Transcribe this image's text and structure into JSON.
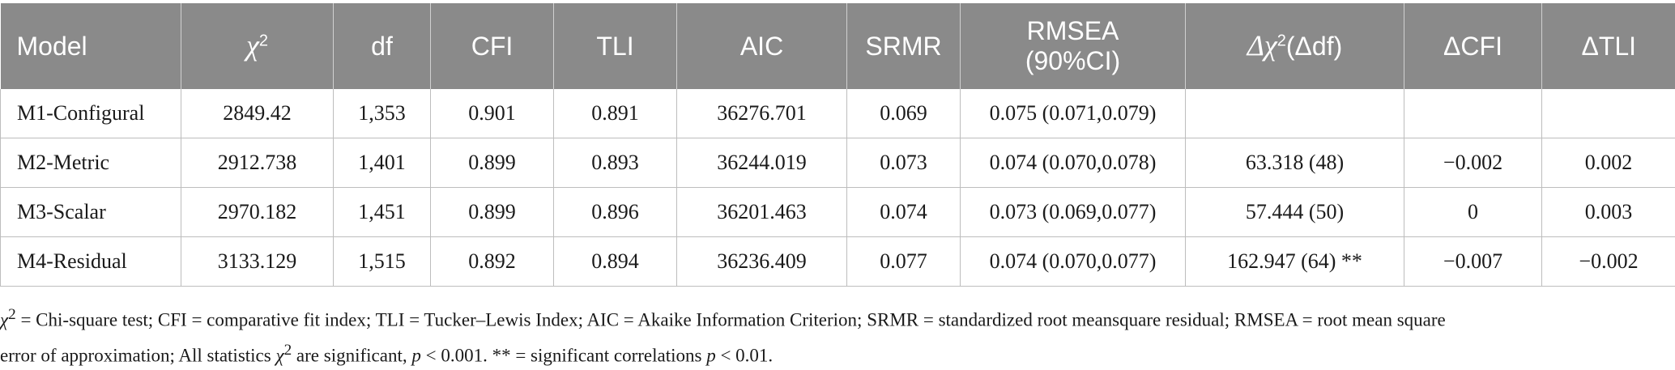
{
  "table": {
    "headers": [
      {
        "key": "model",
        "label": "Model"
      },
      {
        "key": "chi2",
        "label": "χ",
        "sup": "2"
      },
      {
        "key": "df",
        "label": "df"
      },
      {
        "key": "cfi",
        "label": "CFI"
      },
      {
        "key": "tli",
        "label": "TLI"
      },
      {
        "key": "aic",
        "label": "AIC"
      },
      {
        "key": "srmr",
        "label": "SRMR"
      },
      {
        "key": "rmsea",
        "label": "RMSEA",
        "label2": "(90%CI)"
      },
      {
        "key": "dchi",
        "label": "Δχ",
        "sup": "2",
        "suffix": "(Δdf)"
      },
      {
        "key": "dcfi",
        "label": "ΔCFI"
      },
      {
        "key": "dtli",
        "label": "ΔTLI"
      }
    ],
    "rows": [
      [
        "M1-Configural",
        "2849.42",
        "1,353",
        "0.901",
        "0.891",
        "36276.701",
        "0.069",
        "0.075 (0.071,0.079)",
        "",
        "",
        ""
      ],
      [
        "M2-Metric",
        "2912.738",
        "1,401",
        "0.899",
        "0.893",
        "36244.019",
        "0.073",
        "0.074 (0.070,0.078)",
        "63.318 (48)",
        "−0.002",
        "0.002"
      ],
      [
        "M3-Scalar",
        "2970.182",
        "1,451",
        "0.899",
        "0.896",
        "36201.463",
        "0.074",
        "0.073 (0.069,0.077)",
        "57.444 (50)",
        "0",
        "0.003"
      ],
      [
        "M4-Residual",
        "3133.129",
        "1,515",
        "0.892",
        "0.894",
        "36236.409",
        "0.077",
        "0.074 (0.070,0.077)",
        "162.947 (64) **",
        "−0.007",
        "−0.002"
      ]
    ]
  },
  "notes": {
    "line1_chi": "χ",
    "line1_sup": "2",
    "line1_rest": " = Chi-square test; CFI = comparative fit index; TLI = Tucker–Lewis Index; AIC = Akaike Information Criterion; SRMR = standardized root meansquare residual; RMSEA = root mean square",
    "line2_start": "error of approximation; All statistics ",
    "line2_chi": "χ",
    "line2_sup": "2",
    "line2_mid": " are significant, ",
    "line2_p1": "p",
    "line2_mid2": " < 0.001. ** = significant correlations ",
    "line2_p2": "p",
    "line2_end": " < 0.01."
  }
}
